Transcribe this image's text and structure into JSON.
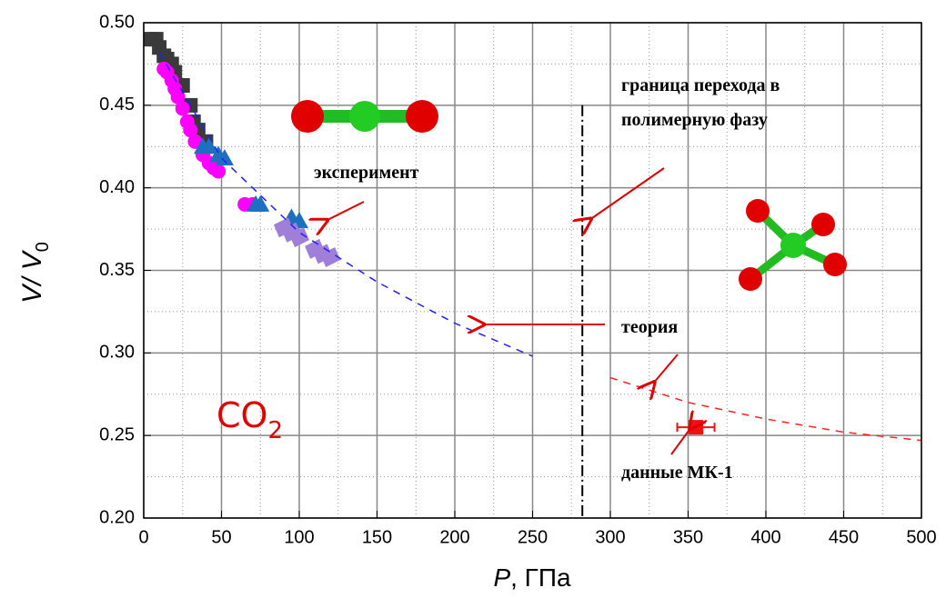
{
  "chart_data": {
    "type": "scatter",
    "x_label": {
      "italic": "P",
      "rest": ", ГПа"
    },
    "y_label": {
      "italic": "V/ V",
      "sub": "0"
    },
    "xlim": [
      0,
      500
    ],
    "ylim": [
      0.2,
      0.5
    ],
    "xticks": [
      0,
      50,
      100,
      150,
      200,
      250,
      300,
      350,
      400,
      450,
      500
    ],
    "yticks": [
      {
        "value": 0.2,
        "label": "0.20"
      },
      {
        "value": 0.25,
        "label": "0.25"
      },
      {
        "value": 0.3,
        "label": "0.30"
      },
      {
        "value": 0.35,
        "label": "0.35"
      },
      {
        "value": 0.4,
        "label": "0.40"
      },
      {
        "value": 0.45,
        "label": "0.45"
      },
      {
        "value": 0.5,
        "label": "0.50"
      }
    ],
    "grid": true,
    "minor_grid": true,
    "series": [
      {
        "mode": "markers",
        "marker": "square",
        "color": "#3a3a3a",
        "x": [
          5,
          8,
          10,
          13,
          15,
          18,
          20,
          25,
          30,
          32,
          35,
          40
        ],
        "values": [
          0.49,
          0.49,
          0.485,
          0.48,
          0.478,
          0.475,
          0.47,
          0.462,
          0.45,
          0.44,
          0.435,
          0.428
        ]
      },
      {
        "mode": "markers",
        "marker": "circle",
        "color": "#ff00ff",
        "x": [
          13,
          15,
          18,
          20,
          22,
          25,
          28,
          30,
          33,
          38,
          42,
          45,
          48,
          65,
          70
        ],
        "values": [
          0.472,
          0.47,
          0.465,
          0.46,
          0.455,
          0.448,
          0.44,
          0.435,
          0.428,
          0.42,
          0.415,
          0.412,
          0.41,
          0.39,
          0.39
        ]
      },
      {
        "mode": "markers",
        "marker": "triangle",
        "color": "#1f6fc0",
        "x": [
          38,
          42,
          48,
          52,
          72,
          75,
          95,
          100
        ],
        "values": [
          0.425,
          0.425,
          0.42,
          0.418,
          0.39,
          0.39,
          0.382,
          0.38
        ]
      },
      {
        "mode": "markers",
        "marker": "diamond",
        "color": "#a07fd8",
        "x": [
          90,
          95,
          100,
          110,
          115,
          120
        ],
        "values": [
          0.376,
          0.373,
          0.37,
          0.363,
          0.36,
          0.358
        ]
      },
      {
        "mode": "line",
        "color": "#2020ff",
        "x": [
          10,
          50,
          100,
          150,
          200,
          250
        ],
        "values": [
          0.482,
          0.418,
          0.373,
          0.343,
          0.318,
          0.298
        ]
      },
      {
        "mode": "line",
        "color": "#ff2020",
        "x": [
          300,
          350,
          400,
          450,
          500
        ],
        "values": [
          0.285,
          0.27,
          0.26,
          0.252,
          0.247
        ]
      },
      {
        "mode": "markers",
        "marker": "square",
        "color": "#ee1111",
        "x": [
          355
        ],
        "values": [
          0.255
        ],
        "xerr": [
          12
        ]
      }
    ],
    "boundary": 282,
    "annotations": {
      "boundary_1": "граница перехода в",
      "boundary_2": "полимерную фазу",
      "experiment": "эксперимент",
      "theory": "теория",
      "mk1": "данные МК-1",
      "formula": {
        "text": "CO",
        "sub": "2"
      }
    }
  }
}
